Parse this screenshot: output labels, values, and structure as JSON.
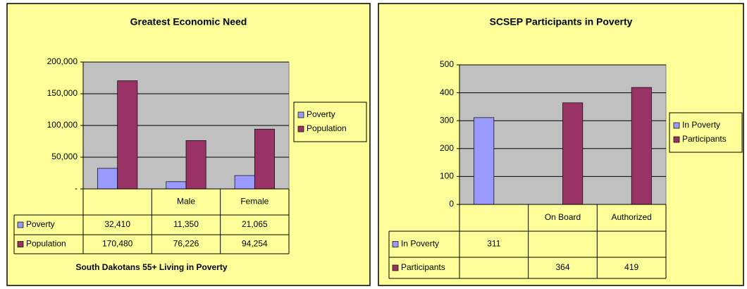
{
  "chart_data": [
    {
      "type": "bar",
      "title": "Greatest Economic Need",
      "x_label": "South Dakotans 55+ Living in Poverty",
      "categories": [
        null,
        "Male",
        "Female"
      ],
      "series": [
        {
          "name": "Poverty",
          "color": "#9999ff",
          "values": [
            32410,
            11350,
            21065
          ],
          "value_labels": [
            "32,410",
            "11,350",
            "21,065"
          ]
        },
        {
          "name": "Population",
          "color": "#993366",
          "values": [
            170480,
            76226,
            94254
          ],
          "value_labels": [
            "170,480",
            "76,226",
            "94,254"
          ]
        }
      ],
      "ylim": [
        0,
        200000
      ],
      "yticks": [
        {
          "value": 0,
          "label": "-"
        },
        {
          "value": 50000,
          "label": "50,000"
        },
        {
          "value": 100000,
          "label": "100,000"
        },
        {
          "value": 150000,
          "label": "150,000"
        },
        {
          "value": 200000,
          "label": "200,000"
        }
      ],
      "grid": true,
      "legend": "right"
    },
    {
      "type": "bar",
      "title": "SCSEP Participants in Poverty",
      "categories": [
        null,
        "On Board",
        "Authorized"
      ],
      "series": [
        {
          "name": "In Poverty",
          "color": "#9999ff",
          "values": [
            311,
            null,
            null
          ]
        },
        {
          "name": "Participants",
          "color": "#993366",
          "values": [
            null,
            364,
            419
          ]
        }
      ],
      "ylim": [
        0,
        500
      ],
      "yticks": [
        0,
        100,
        200,
        300,
        400,
        500
      ],
      "grid": true,
      "legend": "right"
    }
  ]
}
